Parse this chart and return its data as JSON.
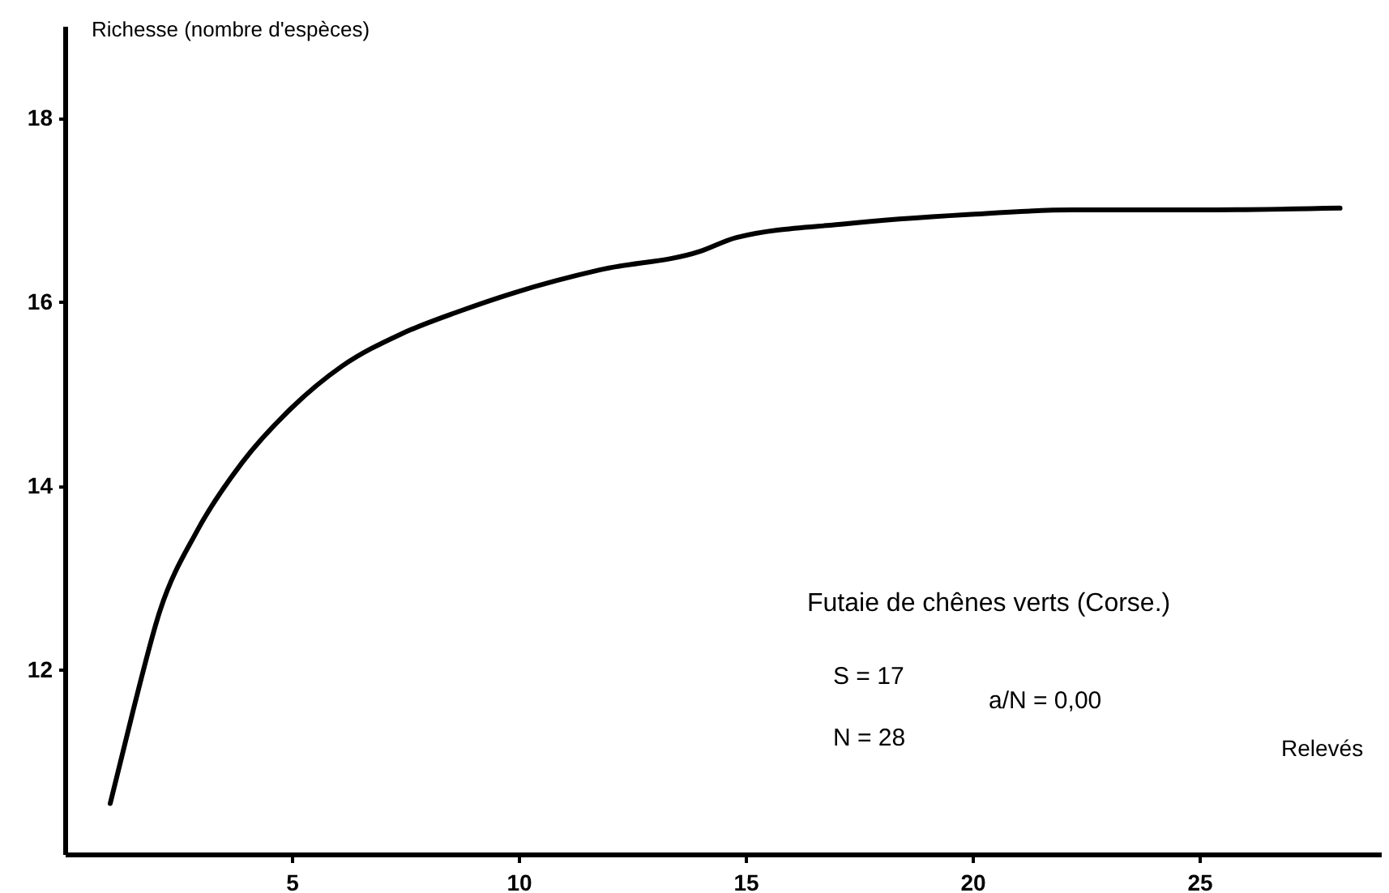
{
  "chart_data": {
    "type": "line",
    "xlabel": "Relevés",
    "ylabel": "Richesse (nombre d'espèces)",
    "annotations": [
      "Futaie de chênes verts (Corse.)",
      "S = 17",
      "N = 28",
      "a/N = 0,00"
    ],
    "series": [
      {
        "color": "#000000",
        "x": [
          1.0,
          1.5,
          2.1,
          2.9,
          3.9,
          5.0,
          6.1,
          7.4,
          8.7,
          9.9,
          11.8,
          14.0,
          14.8,
          17.2,
          19.9,
          22.2,
          25.0,
          28.1
        ],
        "values": [
          10.55,
          11.55,
          12.65,
          13.5,
          14.25,
          14.85,
          15.3,
          15.65,
          15.9,
          16.1,
          16.35,
          16.55,
          16.7,
          16.85,
          16.95,
          17.0,
          17.0,
          17.02
        ]
      }
    ],
    "xlim": [
      0,
      29
    ],
    "xticks": [
      5,
      10,
      15,
      20,
      25
    ],
    "ylim": [
      10,
      19
    ],
    "yticks": [
      12,
      14,
      16,
      18
    ],
    "grid": false,
    "marker": "none",
    "line_style": "solid"
  }
}
